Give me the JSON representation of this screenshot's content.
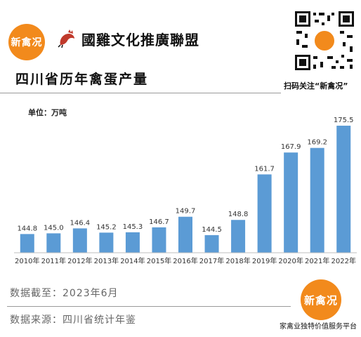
{
  "brand": {
    "logo_text": "新禽况",
    "alliance_name": "國雞文化推廣聯盟",
    "qr_caption": "扫码关注“新禽况”",
    "slogan": "家禽业独特价值服务平台"
  },
  "colors": {
    "bar": "#5b9bd5",
    "accent": "#f28a1c"
  },
  "chart_data": {
    "type": "bar",
    "title": "四川省历年禽蛋产量",
    "unit_label": "单位：万吨",
    "categories": [
      "2010年",
      "2011年",
      "2012年",
      "2013年",
      "2014年",
      "2015年",
      "2016年",
      "2017年",
      "2018年",
      "2019年",
      "2020年",
      "2021年",
      "2022年"
    ],
    "values": [
      144.8,
      145.0,
      146.4,
      145.2,
      145.3,
      146.7,
      149.7,
      144.5,
      148.8,
      161.7,
      167.9,
      169.2,
      175.5
    ],
    "value_labels": [
      "144.8",
      "145.0",
      "146.4",
      "145.2",
      "145.3",
      "146.7",
      "149.7",
      "144.5",
      "148.8",
      "161.7",
      "167.9",
      "169.2",
      "175.5"
    ],
    "ylim": [
      139.5,
      176.5
    ],
    "grid": false,
    "legend": "none"
  },
  "footer": {
    "cutoff": "数据截至：2023年6月",
    "source": "数据来源：四川省统计年鉴"
  }
}
